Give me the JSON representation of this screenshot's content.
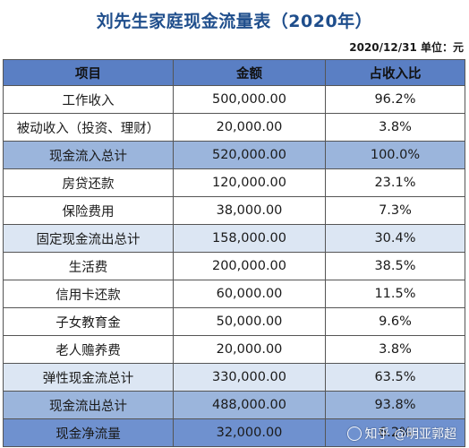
{
  "title": "刘先生家庭现金流量表（2020年）",
  "meta": "2020/12/31 单位：元",
  "table": {
    "headers": [
      "项目",
      "金额",
      "占收入比"
    ],
    "rows": [
      {
        "item": "工作收入",
        "amount": "500,000.00",
        "ratio": "96.2%",
        "style": "plain"
      },
      {
        "item": "被动收入（投资、理财）",
        "amount": "20,000.00",
        "ratio": "3.8%",
        "style": "plain"
      },
      {
        "item": "现金流入总计",
        "amount": "520,000.00",
        "ratio": "100.0%",
        "style": "mid"
      },
      {
        "item": "房贷还款",
        "amount": "120,000.00",
        "ratio": "23.1%",
        "style": "plain"
      },
      {
        "item": "保险费用",
        "amount": "38,000.00",
        "ratio": "7.3%",
        "style": "plain"
      },
      {
        "item": "固定现金流出总计",
        "amount": "158,000.00",
        "ratio": "30.4%",
        "style": "light"
      },
      {
        "item": "生活费",
        "amount": "200,000.00",
        "ratio": "38.5%",
        "style": "plain"
      },
      {
        "item": "信用卡还款",
        "amount": "60,000.00",
        "ratio": "11.5%",
        "style": "plain"
      },
      {
        "item": "子女教育金",
        "amount": "50,000.00",
        "ratio": "9.6%",
        "style": "plain"
      },
      {
        "item": "老人赡养费",
        "amount": "20,000.00",
        "ratio": "3.8%",
        "style": "plain"
      },
      {
        "item": "弹性现金流总计",
        "amount": "330,000.00",
        "ratio": "63.5%",
        "style": "light"
      },
      {
        "item": "现金流出总计",
        "amount": "488,000.00",
        "ratio": "93.8%",
        "style": "mid"
      },
      {
        "item": "现金净流量",
        "amount": "32,000.00",
        "ratio": "6.2%",
        "style": "dark"
      }
    ]
  },
  "watermark": {
    "text": "知乎 @明亚郭超",
    "icon": "zhihu-logo-icon"
  }
}
